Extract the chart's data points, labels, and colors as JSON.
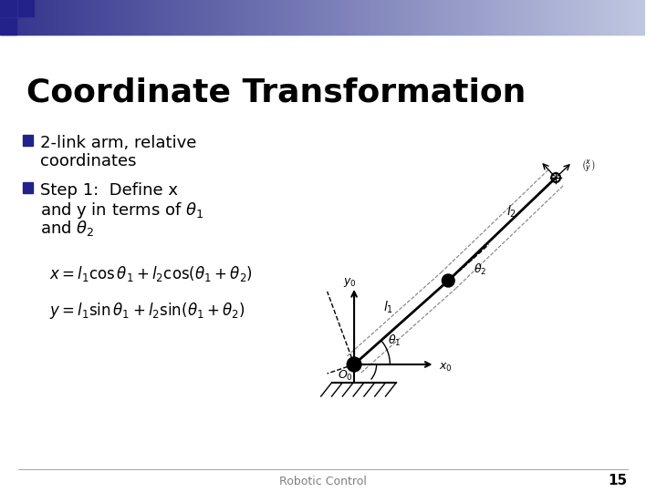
{
  "title": "Coordinate Transformation",
  "bullet1": "2-link arm, relative\n  coordinates",
  "bullet2": "Step 1:  Define x\n  and y in terms of θ₁\n  and θ₂",
  "eq1": "$x = l_1 \\cos\\theta_1 + l_2 \\cos(\\theta_1 + \\theta_2)$",
  "eq2": "$y = l_1 \\sin\\theta_1 + l_2 \\sin(\\theta_1 + \\theta_2)$",
  "footer": "Robotic Control",
  "page": "15",
  "bg_color": "#ffffff",
  "title_color": "#000000",
  "text_color": "#000000",
  "bullet_color": "#1a1aff",
  "header_gradient_left": "#3333aa",
  "header_gradient_right": "#aaaacc"
}
